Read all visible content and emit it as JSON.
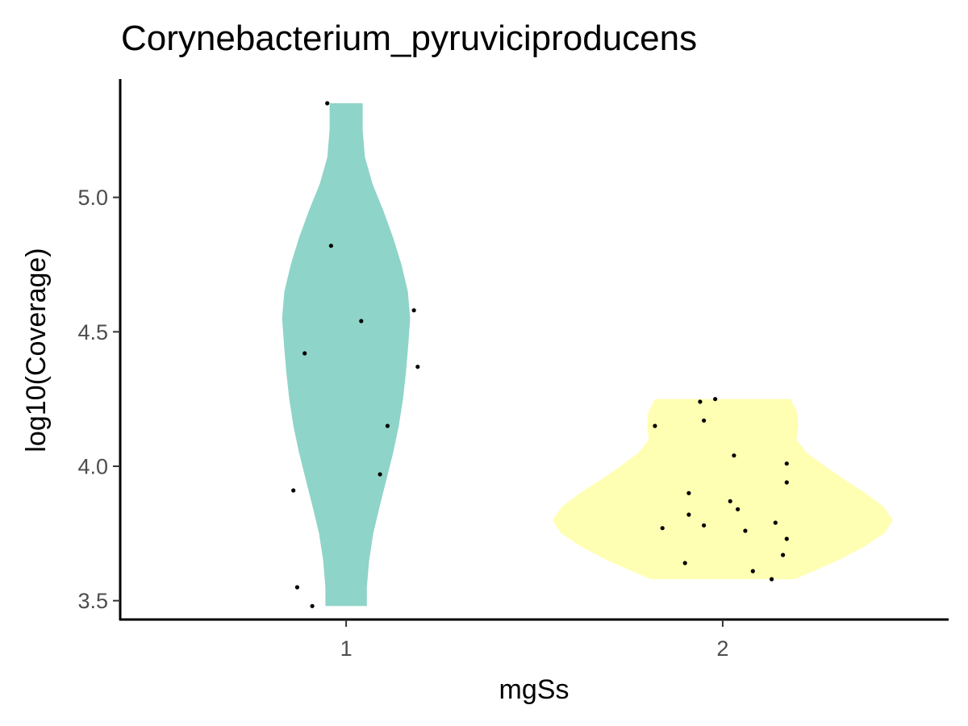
{
  "chart_data": {
    "type": "violin",
    "title": "Corynebacterium_pyruviciproducens",
    "xlabel": "mgSs",
    "ylabel": "log10(Coverage)",
    "categories": [
      "1",
      "2"
    ],
    "xlim": [
      0.4,
      2.6
    ],
    "ylim": [
      3.43,
      5.44
    ],
    "yticks": [
      3.5,
      4.0,
      4.5,
      5.0
    ],
    "ytick_labels": [
      "3.5",
      "4.0",
      "4.5",
      "5.0"
    ],
    "grid": false,
    "legend": "none",
    "colors": {
      "1": "#8fd4c8",
      "2": "#ffffb3"
    },
    "violins": [
      {
        "category": "1",
        "density": [
          [
            5.35,
            0.044
          ],
          [
            5.25,
            0.044
          ],
          [
            5.15,
            0.05
          ],
          [
            5.05,
            0.07
          ],
          [
            4.95,
            0.099
          ],
          [
            4.85,
            0.125
          ],
          [
            4.75,
            0.147
          ],
          [
            4.65,
            0.164
          ],
          [
            4.55,
            0.17
          ],
          [
            4.45,
            0.165
          ],
          [
            4.35,
            0.159
          ],
          [
            4.25,
            0.151
          ],
          [
            4.15,
            0.14
          ],
          [
            4.05,
            0.125
          ],
          [
            3.95,
            0.107
          ],
          [
            3.85,
            0.089
          ],
          [
            3.75,
            0.072
          ],
          [
            3.65,
            0.061
          ],
          [
            3.55,
            0.055
          ],
          [
            3.48,
            0.055
          ]
        ]
      },
      {
        "category": "2",
        "density": [
          [
            4.25,
            0.18
          ],
          [
            4.2,
            0.198
          ],
          [
            4.15,
            0.201
          ],
          [
            4.1,
            0.196
          ],
          [
            4.05,
            0.223
          ],
          [
            4.0,
            0.272
          ],
          [
            3.95,
            0.324
          ],
          [
            3.9,
            0.379
          ],
          [
            3.85,
            0.427
          ],
          [
            3.8,
            0.452
          ],
          [
            3.75,
            0.429
          ],
          [
            3.7,
            0.374
          ],
          [
            3.65,
            0.306
          ],
          [
            3.6,
            0.225
          ],
          [
            3.58,
            0.19
          ]
        ]
      }
    ],
    "points": [
      {
        "x": 0.95,
        "y": 5.35
      },
      {
        "x": 0.96,
        "y": 4.82
      },
      {
        "x": 1.04,
        "y": 4.54
      },
      {
        "x": 1.18,
        "y": 4.58
      },
      {
        "x": 0.89,
        "y": 4.42
      },
      {
        "x": 1.19,
        "y": 4.37
      },
      {
        "x": 1.11,
        "y": 4.15
      },
      {
        "x": 1.09,
        "y": 3.97
      },
      {
        "x": 0.86,
        "y": 3.91
      },
      {
        "x": 0.87,
        "y": 3.55
      },
      {
        "x": 0.91,
        "y": 3.48
      },
      {
        "x": 1.94,
        "y": 4.24
      },
      {
        "x": 1.98,
        "y": 4.25
      },
      {
        "x": 1.82,
        "y": 4.15
      },
      {
        "x": 1.95,
        "y": 4.17
      },
      {
        "x": 2.03,
        "y": 4.04
      },
      {
        "x": 2.17,
        "y": 4.01
      },
      {
        "x": 2.17,
        "y": 3.94
      },
      {
        "x": 1.91,
        "y": 3.9
      },
      {
        "x": 2.02,
        "y": 3.87
      },
      {
        "x": 2.04,
        "y": 3.84
      },
      {
        "x": 1.91,
        "y": 3.82
      },
      {
        "x": 2.14,
        "y": 3.79
      },
      {
        "x": 1.84,
        "y": 3.77
      },
      {
        "x": 1.95,
        "y": 3.78
      },
      {
        "x": 2.06,
        "y": 3.76
      },
      {
        "x": 2.17,
        "y": 3.73
      },
      {
        "x": 2.16,
        "y": 3.67
      },
      {
        "x": 1.9,
        "y": 3.64
      },
      {
        "x": 2.08,
        "y": 3.61
      },
      {
        "x": 2.13,
        "y": 3.58
      }
    ]
  }
}
